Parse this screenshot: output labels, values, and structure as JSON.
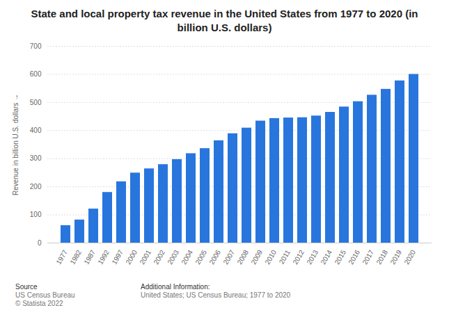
{
  "chart_data": {
    "type": "bar",
    "title": "State and local property tax revenue in the United States from 1977 to 2020 (in billion U.S. dollars)",
    "y_label": "Revenue in billion U.S. dollars",
    "categories": [
      "1977",
      "1982",
      "1987",
      "1992",
      "1997",
      "2000",
      "2001",
      "2002",
      "2003",
      "2004",
      "2005",
      "2006",
      "2007",
      "2008",
      "2009",
      "2010",
      "2011",
      "2012",
      "2013",
      "2014",
      "2015",
      "2016",
      "2017",
      "2018",
      "2019",
      "2020"
    ],
    "values": [
      62,
      82,
      121,
      180,
      218,
      249,
      264,
      279,
      297,
      318,
      336,
      364,
      389,
      409,
      434,
      443,
      445,
      446,
      452,
      465,
      484,
      503,
      526,
      547,
      577,
      600
    ],
    "color": "#2876dd",
    "ylim": [
      0,
      700
    ],
    "yticks": [
      0,
      100,
      200,
      300,
      400,
      500,
      600,
      700
    ],
    "grid": true,
    "footer": {
      "source_heading": "Source",
      "source": "US Census Bureau",
      "copyright": "© Statista 2022",
      "info_heading": "Additional Information:",
      "info": "United States; US Census Bureau; 1977 to 2020"
    }
  }
}
